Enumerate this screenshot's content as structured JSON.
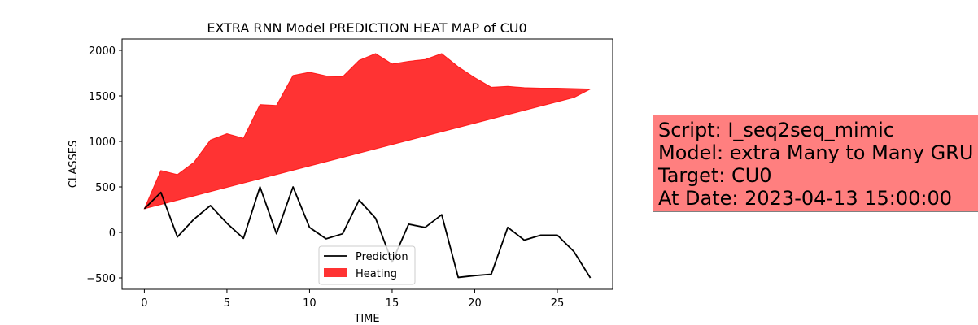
{
  "chart_data": {
    "type": "area",
    "title": "EXTRA RNN Model PREDICTION HEAT MAP of CU0",
    "xlabel": "TIME",
    "ylabel": "CLASSES",
    "xlim": [
      -1.35,
      28.35
    ],
    "ylim": [
      -625,
      2125
    ],
    "xticks": [
      0,
      5,
      10,
      15,
      20,
      25
    ],
    "yticks": [
      -500,
      0,
      500,
      1000,
      1500,
      2000
    ],
    "x": [
      0,
      1,
      2,
      3,
      4,
      5,
      6,
      7,
      8,
      9,
      10,
      11,
      12,
      13,
      14,
      15,
      16,
      17,
      18,
      19,
      20,
      21,
      22,
      23,
      24,
      25,
      26,
      27
    ],
    "series": [
      {
        "name": "Prediction",
        "type": "line",
        "color": "#000000",
        "values": [
          260,
          440,
          -50,
          145,
          295,
          100,
          -65,
          500,
          -15,
          500,
          55,
          -70,
          -15,
          355,
          155,
          -325,
          90,
          55,
          195,
          -495,
          -475,
          -460,
          55,
          -85,
          -30,
          -30,
          -210,
          -500
        ]
      },
      {
        "name": "Heating",
        "type": "fill_between",
        "color": "#ff0000",
        "upper": [
          260,
          680,
          635,
          770,
          1015,
          1085,
          1035,
          1405,
          1395,
          1725,
          1760,
          1720,
          1710,
          1890,
          1965,
          1850,
          1880,
          1900,
          1965,
          1820,
          1700,
          1595,
          1605,
          1590,
          1585,
          1585,
          1580,
          1575
        ],
        "lower": [
          260,
          307,
          354,
          401,
          448,
          495,
          542,
          589,
          636,
          683,
          730,
          777,
          824,
          871,
          918,
          965,
          1012,
          1059,
          1106,
          1153,
          1200,
          1247,
          1294,
          1341,
          1388,
          1435,
          1482,
          1575
        ]
      }
    ],
    "legend": {
      "placement": "lower-center",
      "entries": [
        "Prediction",
        "Heating"
      ]
    }
  },
  "info_box": {
    "lines": [
      "Script: I_seq2seq_mimic",
      "Model: extra Many to Many GRU",
      "Target: CU0",
      "At Date: 2023-04-13 15:00:00"
    ],
    "background": "#ff7f7f"
  }
}
